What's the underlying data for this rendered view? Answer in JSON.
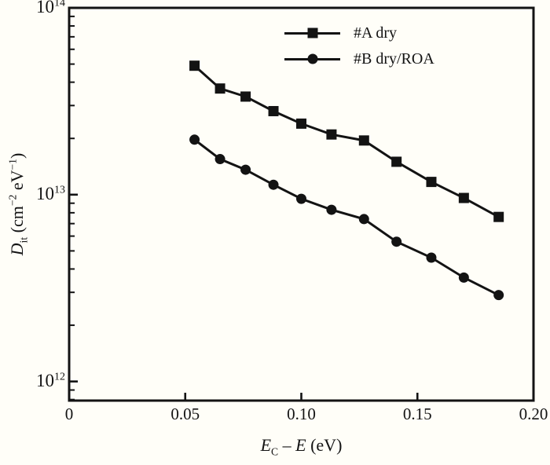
{
  "figure_background": "#fffef8",
  "ink_color": "#131313",
  "chart_data": {
    "type": "line",
    "title": "",
    "xlabel": "E_C − E (eV)",
    "ylabel": "D_it (cm^−2 eV^−1)",
    "xlabel_parts": [
      {
        "t": "E",
        "s": "i"
      },
      {
        "t": "C",
        "s": "sub"
      },
      {
        "t": " – ",
        "s": ""
      },
      {
        "t": "E",
        "s": "i"
      },
      {
        "t": " (eV)",
        "s": ""
      }
    ],
    "ylabel_parts": [
      {
        "t": "D",
        "s": "i"
      },
      {
        "t": "it",
        "s": "sub"
      },
      {
        "t": " (cm",
        "s": ""
      },
      {
        "t": "−2",
        "s": "sup"
      },
      {
        "t": " eV",
        "s": ""
      },
      {
        "t": "−1",
        "s": "sup"
      },
      {
        "t": ")",
        "s": ""
      }
    ],
    "xlim": [
      0,
      0.2
    ],
    "ylim": [
      790000000000.0,
      100000000000000.0
    ],
    "yscale": "log",
    "grid": false,
    "legend_position": "top-center-inside",
    "xticks": [
      {
        "v": 0.0,
        "label": "0",
        "tick": false
      },
      {
        "v": 0.05,
        "label": "0.05",
        "tick": true
      },
      {
        "v": 0.1,
        "label": "0.10",
        "tick": true
      },
      {
        "v": 0.15,
        "label": "0.15",
        "tick": true
      },
      {
        "v": 0.2,
        "label": "0.20",
        "tick": false
      }
    ],
    "yticks": [
      {
        "v": 100000000000000.0,
        "base": "10",
        "exp": "14"
      },
      {
        "v": 10000000000000.0,
        "base": "10",
        "exp": "13"
      },
      {
        "v": 1000000000000.0,
        "base": "10",
        "exp": "12"
      }
    ],
    "x": [
      0.054,
      0.065,
      0.076,
      0.088,
      0.1,
      0.113,
      0.127,
      0.141,
      0.156,
      0.17,
      0.185
    ],
    "series": [
      {
        "name": "#A dry",
        "marker": "square",
        "values": [
          49000000000000.0,
          37000000000000.0,
          33500000000000.0,
          28000000000000.0,
          24000000000000.0,
          21000000000000.0,
          19500000000000.0,
          15000000000000.0,
          11700000000000.0,
          9600000000000.0,
          7600000000000.0
        ]
      },
      {
        "name": "#B dry/ROA",
        "marker": "circle",
        "values": [
          19700000000000.0,
          15500000000000.0,
          13600000000000.0,
          11300000000000.0,
          9500000000000.0,
          8300000000000.0,
          7400000000000.0,
          5600000000000.0,
          4600000000000.0,
          3600000000000.0,
          2900000000000.0
        ]
      }
    ]
  }
}
